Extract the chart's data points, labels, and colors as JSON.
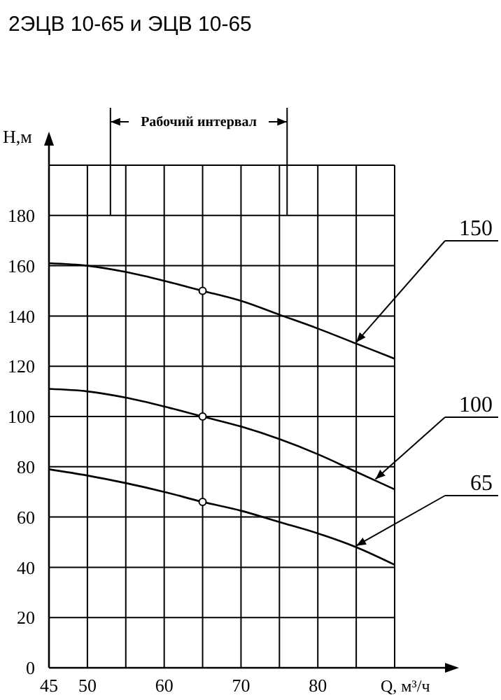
{
  "chart_data": {
    "type": "line",
    "title": "2ЭЦВ 10-65 и ЭЦВ 10-65",
    "xlabel": "Q, м³/ч",
    "ylabel": "Н,м",
    "xlim": [
      45,
      90
    ],
    "xticks": [
      45,
      50,
      60,
      70,
      80
    ],
    "ylim": [
      0,
      200
    ],
    "yticks": [
      0,
      20,
      40,
      60,
      80,
      100,
      120,
      140,
      160,
      180,
      {
        "value": 200,
        "label": null
      }
    ],
    "grid": true,
    "marker": "none",
    "series": [
      {
        "name": "150",
        "color": "#000000",
        "x": [
          45,
          50,
          55,
          60,
          65,
          70,
          75,
          80,
          85,
          90
        ],
        "values": [
          161,
          160,
          157.5,
          154,
          150,
          146,
          140.5,
          135,
          129,
          123
        ]
      },
      {
        "name": "100",
        "color": "#000000",
        "x": [
          45,
          50,
          55,
          60,
          65,
          70,
          75,
          80,
          85,
          90
        ],
        "values": [
          111,
          110,
          107.5,
          104,
          100,
          96,
          91,
          85,
          78,
          71
        ]
      },
      {
        "name": "65",
        "color": "#000000",
        "x": [
          45,
          50,
          55,
          60,
          65,
          70,
          75,
          80,
          85,
          90
        ],
        "values": [
          79,
          76.5,
          73.5,
          70,
          66,
          62.5,
          58,
          53.5,
          48,
          41
        ]
      },
      {
        "type": "scatter",
        "color": "#000000",
        "marker": "circle",
        "x": [
          65,
          65,
          65
        ],
        "values": [
          150,
          100,
          66
        ]
      }
    ],
    "ref_lines": [
      {
        "axis": "x",
        "value": 53
      },
      {
        "axis": "x",
        "value": 76
      }
    ],
    "annotations": [
      "Рабочий интервал"
    ]
  }
}
